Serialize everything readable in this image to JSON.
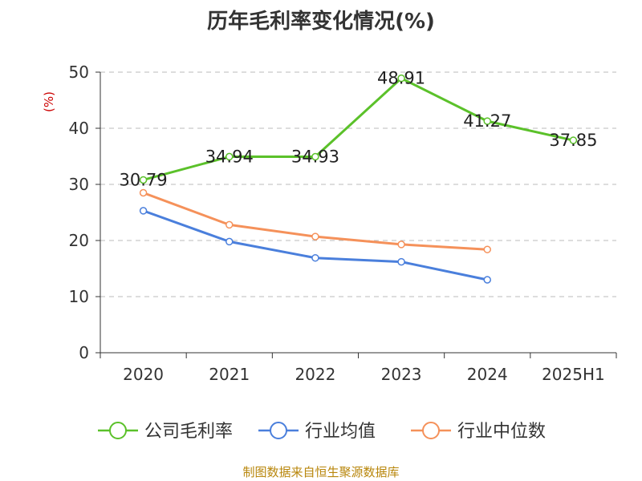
{
  "chart_data": {
    "type": "line",
    "title": "历年毛利率变化情况(%)",
    "ylabel": "(%)",
    "xlabel": "",
    "categories": [
      "2020",
      "2021",
      "2022",
      "2023",
      "2024",
      "2025H1"
    ],
    "ylim": [
      0,
      50
    ],
    "yticks": [
      0,
      10,
      20,
      30,
      40,
      50
    ],
    "grid": true,
    "legend_position": "bottom",
    "series": [
      {
        "name": "公司毛利率",
        "color": "#5bc12a",
        "show_labels": true,
        "values": [
          30.79,
          34.94,
          34.93,
          48.91,
          41.27,
          37.85
        ],
        "labels": [
          "30.79",
          "34.94",
          "34.93",
          "48.91",
          "41.27",
          "37.85"
        ]
      },
      {
        "name": "行业均值",
        "color": "#4a7fdc",
        "show_labels": false,
        "values": [
          25.3,
          19.8,
          16.9,
          16.2,
          13.0,
          null
        ]
      },
      {
        "name": "行业中位数",
        "color": "#f5915a",
        "show_labels": false,
        "values": [
          28.5,
          22.8,
          20.7,
          19.3,
          18.4,
          null
        ]
      }
    ]
  },
  "source": "制图数据来自恒生聚源数据库"
}
